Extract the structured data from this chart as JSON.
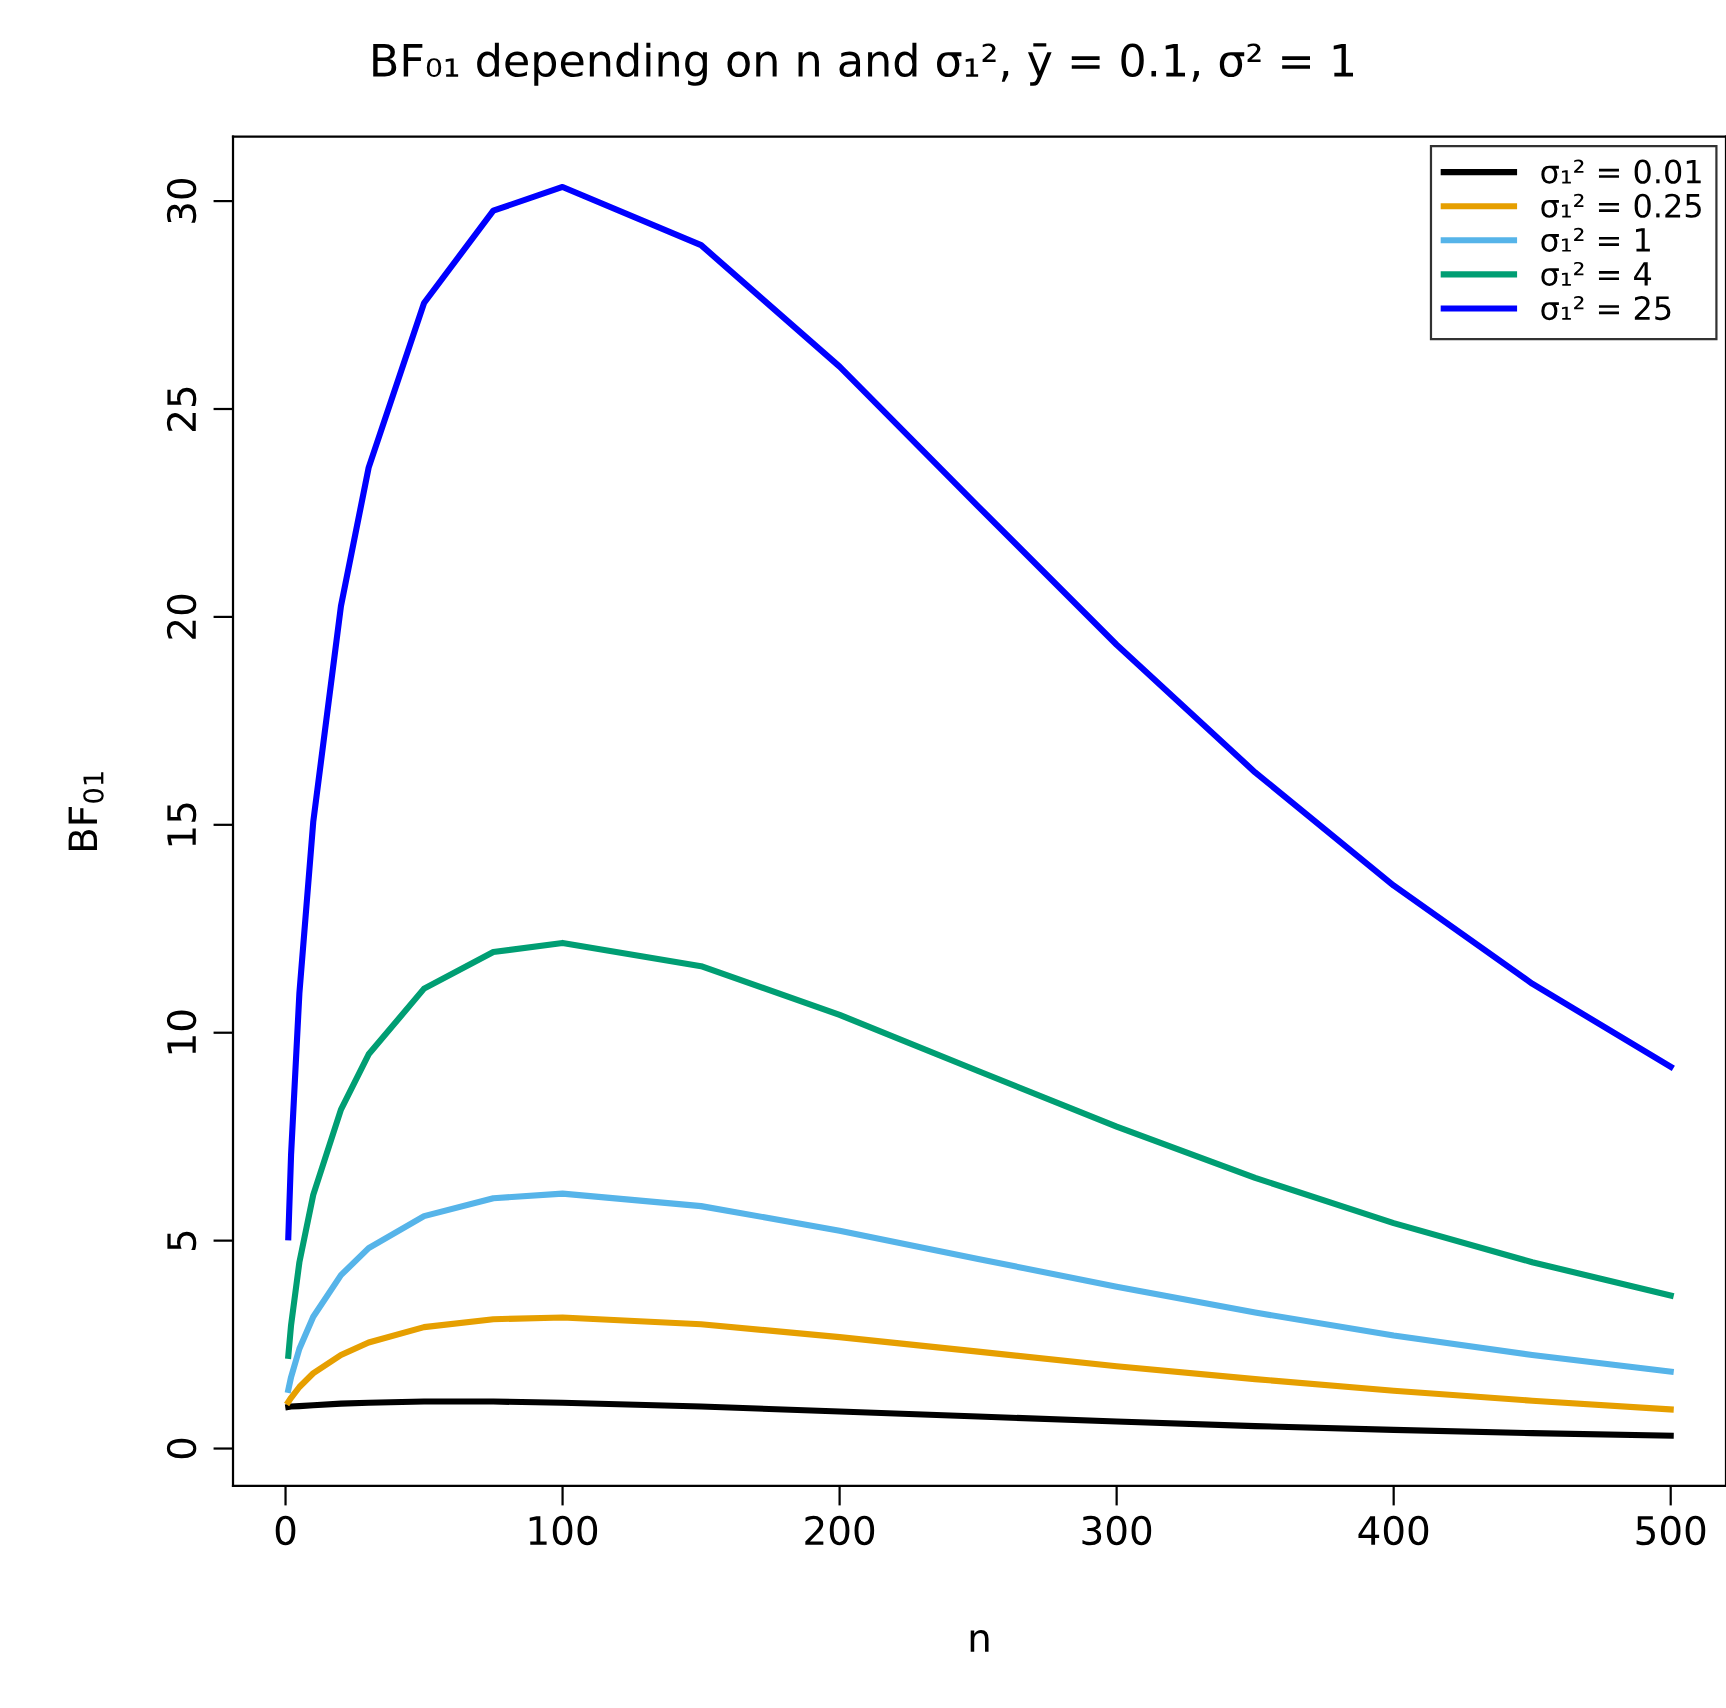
{
  "chart_data": {
    "type": "line",
    "title": "BF₀₁ depending on n and σ₁², ȳ = 0.1, σ² = 1",
    "xlabel": "n",
    "ylabel": "BF$_{01}$",
    "x": [
      1,
      2,
      5,
      10,
      20,
      30,
      50,
      75,
      100,
      150,
      200,
      250,
      300,
      350,
      400,
      450,
      500
    ],
    "series": [
      {
        "name": "σ₁² = 0.01",
        "color": "#000000",
        "values": [
          1.0,
          1.01,
          1.02,
          1.04,
          1.08,
          1.1,
          1.13,
          1.13,
          1.1,
          1.01,
          0.89,
          0.77,
          0.65,
          0.54,
          0.45,
          0.37,
          0.31
        ]
      },
      {
        "name": "σ₁² = 0.25",
        "color": "#E69F00",
        "values": [
          1.12,
          1.22,
          1.48,
          1.81,
          2.25,
          2.55,
          2.92,
          3.11,
          3.15,
          2.99,
          2.68,
          2.33,
          1.98,
          1.67,
          1.39,
          1.15,
          0.94
        ]
      },
      {
        "name": "σ₁² = 1",
        "color": "#56B4E9",
        "values": [
          1.41,
          1.72,
          2.4,
          3.17,
          4.17,
          4.82,
          5.59,
          6.02,
          6.13,
          5.83,
          5.24,
          4.56,
          3.89,
          3.27,
          2.72,
          2.25,
          1.85
        ]
      },
      {
        "name": "σ₁² = 4",
        "color": "#009E73",
        "values": [
          2.23,
          2.97,
          4.48,
          6.1,
          8.15,
          9.48,
          11.06,
          11.94,
          12.16,
          11.6,
          10.43,
          9.08,
          7.74,
          6.51,
          5.42,
          4.48,
          3.68
        ]
      },
      {
        "name": "σ₁² = 25",
        "color": "#0000FF",
        "values": [
          5.08,
          7.07,
          10.95,
          15.07,
          20.26,
          23.59,
          27.55,
          29.77,
          30.34,
          28.94,
          26.02,
          22.66,
          19.33,
          16.26,
          13.54,
          11.18,
          9.18
        ]
      }
    ],
    "xlim": [
      -18.96,
      519.96
    ],
    "ylim": [
      -0.9,
      31.55
    ],
    "xticks": [
      0,
      100,
      200,
      300,
      400,
      500
    ],
    "yticks": [
      0,
      5,
      10,
      15,
      20,
      25,
      30
    ],
    "grid": false,
    "legend": "top right",
    "marker": "none",
    "line_style": "solid"
  }
}
